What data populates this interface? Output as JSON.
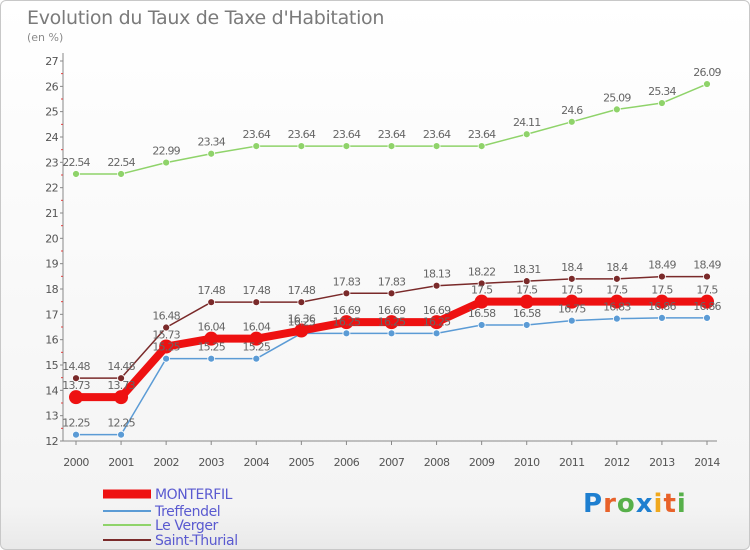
{
  "title": "Evolution du Taux de Taxe d'Habitation",
  "subtitle": "(en %)",
  "logo": {
    "text": "Proxiti",
    "colors": [
      "#1e7fd0",
      "#e8622a",
      "#57b04a",
      "#1e7fd0",
      "#f0a81d",
      "#e8622a",
      "#57b04a"
    ]
  },
  "chart_data": {
    "type": "line",
    "x": [
      "2000",
      "2001",
      "2002",
      "2003",
      "2004",
      "2005",
      "2006",
      "2007",
      "2008",
      "2009",
      "2010",
      "2011",
      "2012",
      "2013",
      "2014"
    ],
    "yticks": [
      "12",
      "13",
      "14",
      "15",
      "16",
      "17",
      "18",
      "19",
      "20",
      "21",
      "22",
      "23",
      "24",
      "25",
      "26",
      "27"
    ],
    "ylim": [
      12,
      27
    ],
    "grid": false,
    "legend_position": "bottom-left",
    "series": [
      {
        "name": "MONTERFIL",
        "color": "#ee1111",
        "width": 8,
        "marker": 7,
        "values": [
          13.73,
          13.73,
          15.73,
          16.04,
          16.04,
          16.36,
          16.69,
          16.69,
          16.69,
          17.5,
          17.5,
          17.5,
          17.5,
          17.5,
          17.5
        ],
        "labels": [
          "13.73",
          "13.73",
          "15.73",
          "16.04",
          "16.04",
          "16.36",
          "16.69",
          "16.69",
          "16.69",
          "17.5",
          "17.5",
          "17.5",
          "17.5",
          "17.5",
          "17.5"
        ]
      },
      {
        "name": "Treffendel",
        "color": "#5b9bd5",
        "width": 1.5,
        "marker": 3.5,
        "values": [
          12.25,
          12.25,
          15.25,
          15.25,
          15.25,
          16.25,
          16.25,
          16.25,
          16.25,
          16.58,
          16.58,
          16.75,
          16.83,
          16.86,
          16.86
        ],
        "labels": [
          "12.25",
          "12.25",
          "15.25",
          "15.25",
          "15.25",
          "16.25",
          "16.25",
          "16.25",
          "16.25",
          "16.58",
          "16.58",
          "16.75",
          "16.83",
          "16.86",
          "16.86"
        ]
      },
      {
        "name": "Le Verger",
        "color": "#8fd36a",
        "width": 1.5,
        "marker": 3.5,
        "values": [
          22.54,
          22.54,
          22.99,
          23.34,
          23.64,
          23.64,
          23.64,
          23.64,
          23.64,
          23.64,
          24.11,
          24.6,
          25.09,
          25.34,
          26.09
        ],
        "labels": [
          "22.54",
          "22.54",
          "22.99",
          "23.34",
          "23.64",
          "23.64",
          "23.64",
          "23.64",
          "23.64",
          "23.64",
          "24.11",
          "24.6",
          "25.09",
          "25.34",
          "26.09"
        ]
      },
      {
        "name": "Saint-Thurial",
        "color": "#7a2a2a",
        "width": 1.5,
        "marker": 3.5,
        "values": [
          14.48,
          14.48,
          16.48,
          17.48,
          17.48,
          17.48,
          17.83,
          17.83,
          18.13,
          18.22,
          18.31,
          18.4,
          18.4,
          18.49,
          18.49
        ],
        "labels": [
          "14.48",
          "14.48",
          "16.48",
          "17.48",
          "17.48",
          "17.48",
          "17.83",
          "17.83",
          "18.13",
          "18.22",
          "18.31",
          "18.4",
          "18.4",
          "18.49",
          "18.49"
        ]
      }
    ]
  }
}
